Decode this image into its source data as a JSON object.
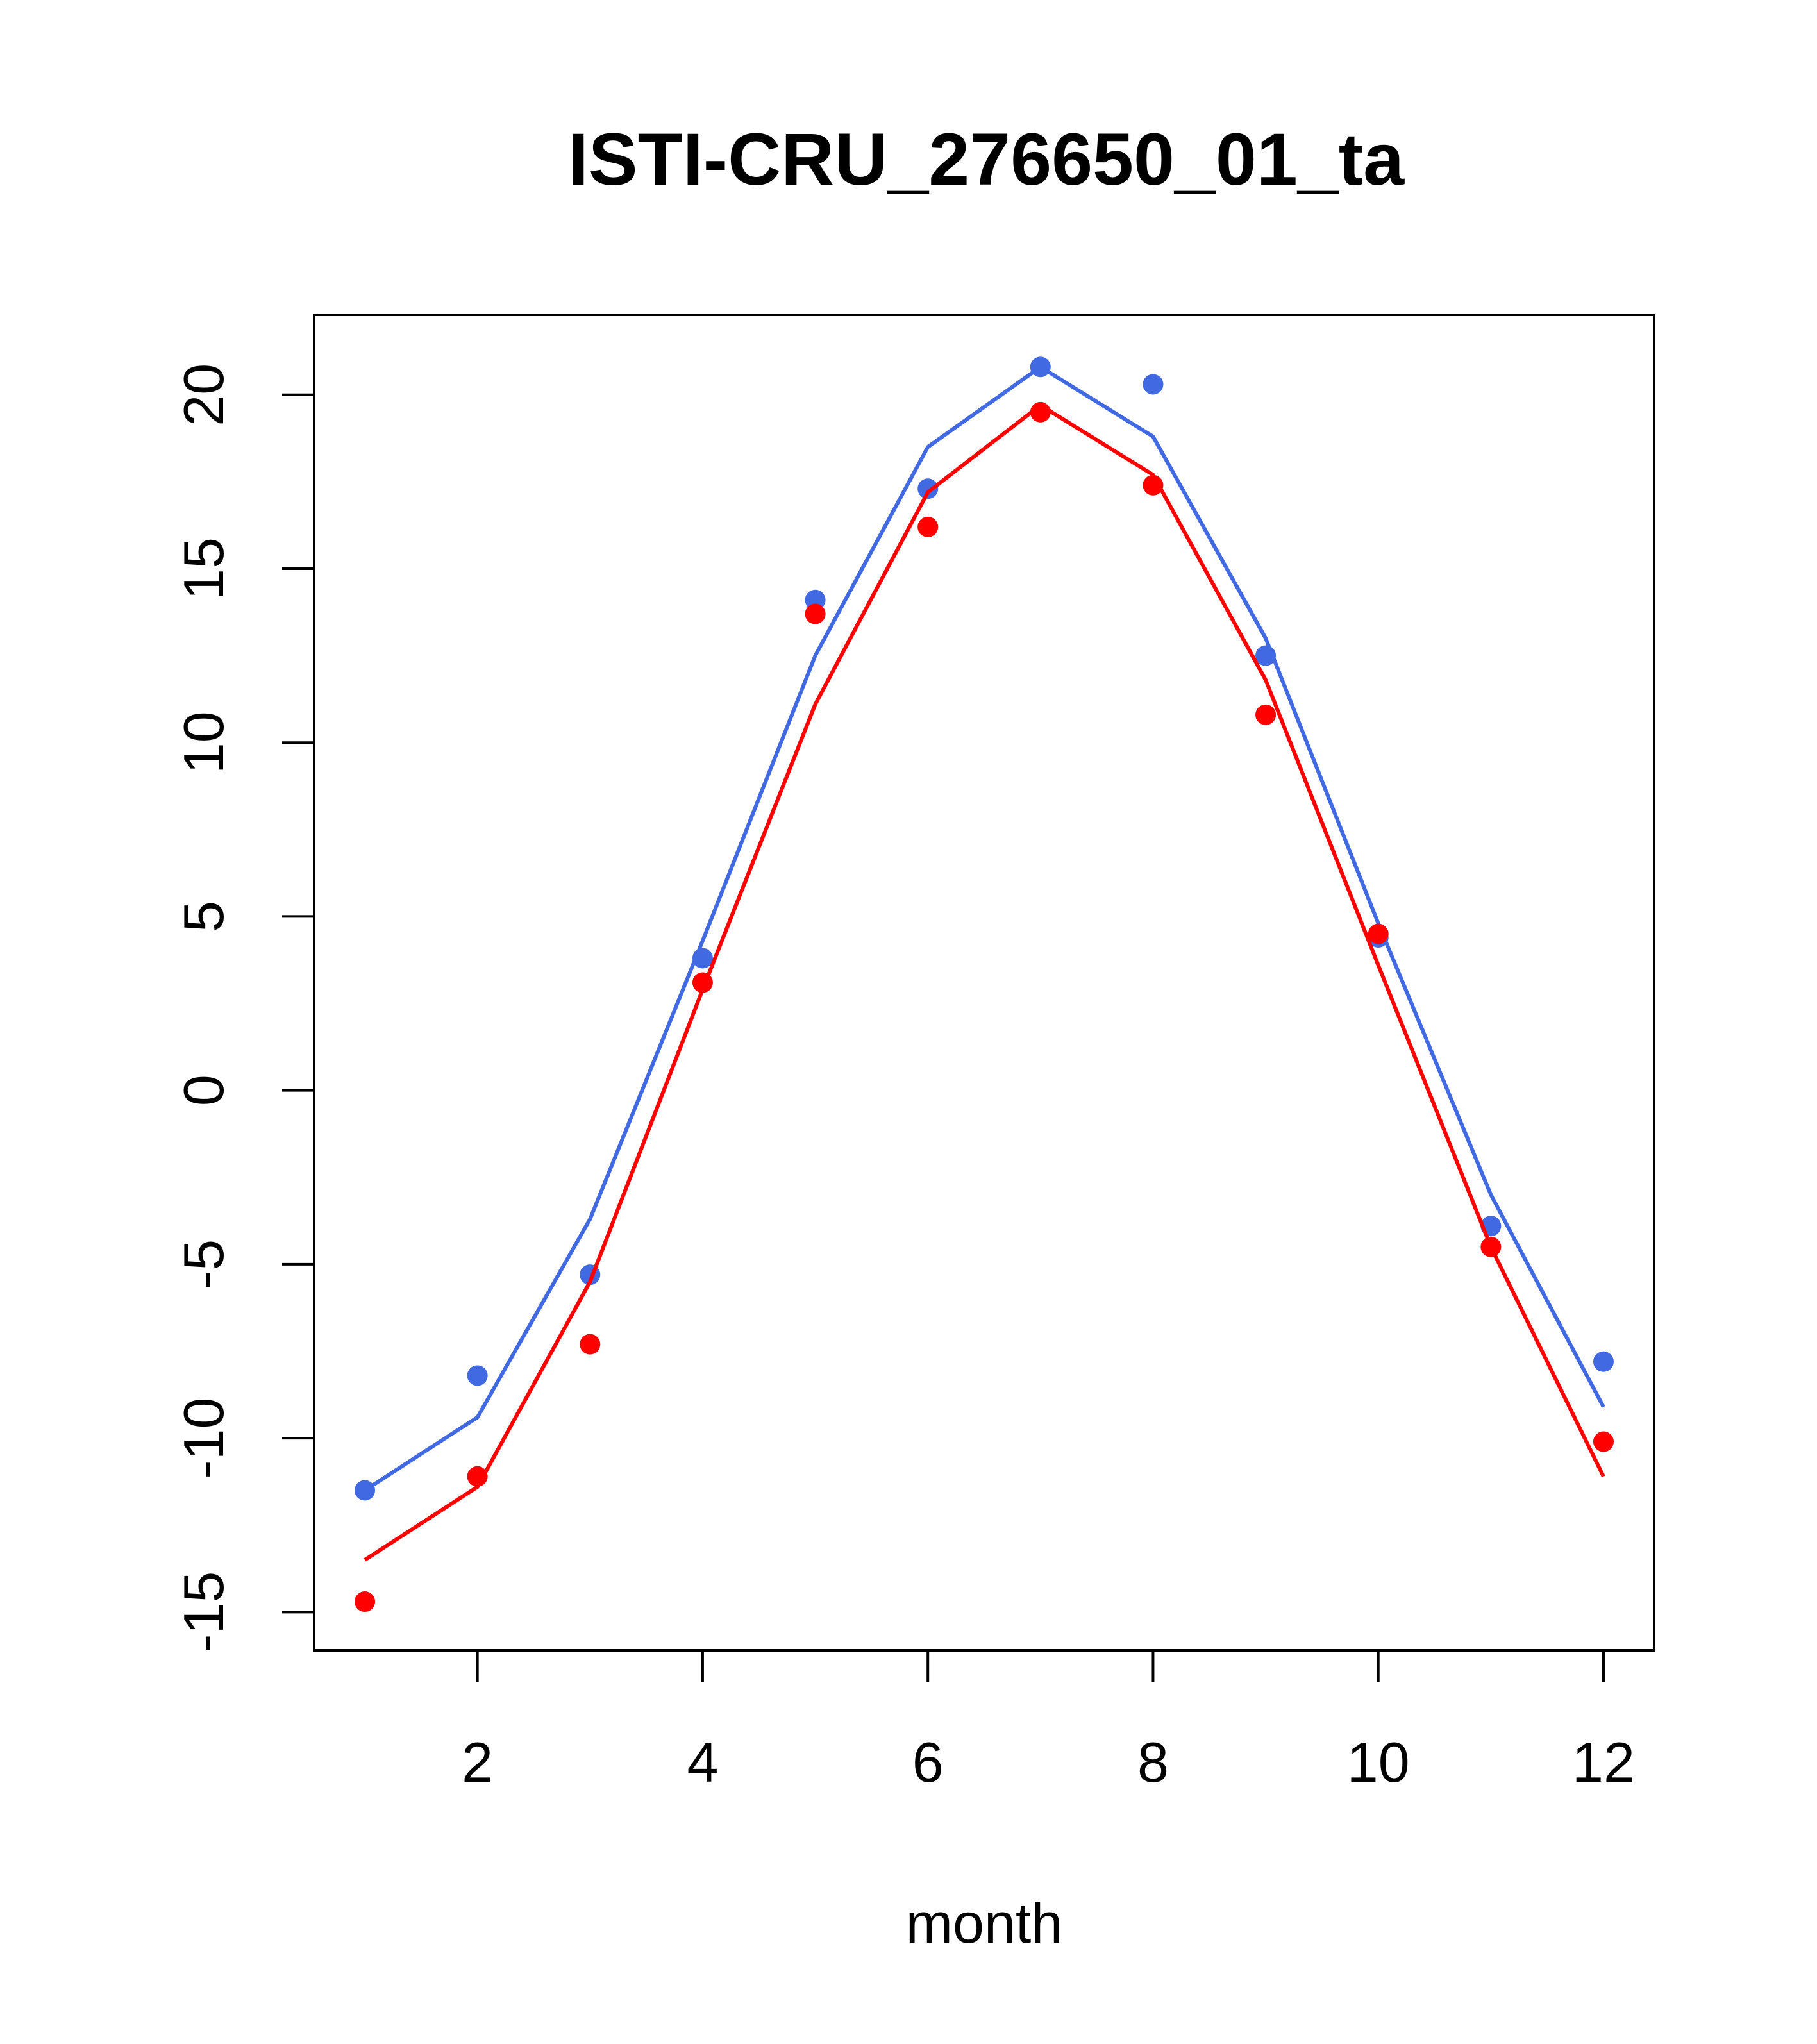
{
  "chart_data": {
    "type": "line",
    "title": "ISTI-CRU_276650_01_ta",
    "xlabel": "month",
    "ylabel": "",
    "xlim": [
      0.55,
      12.45
    ],
    "ylim": [
      -16.1,
      22.3
    ],
    "x_ticks": [
      2,
      4,
      6,
      8,
      10,
      12
    ],
    "y_ticks": [
      -15,
      -10,
      -5,
      0,
      5,
      10,
      15,
      20
    ],
    "grid": false,
    "legend": "none",
    "series": [
      {
        "color": "#4169E1",
        "x": [
          1,
          2,
          3,
          4,
          5,
          6,
          7,
          8,
          9,
          10,
          11,
          12
        ],
        "points": [
          -11.5,
          -8.2,
          -5.3,
          3.8,
          14.1,
          17.3,
          20.8,
          20.3,
          12.5,
          4.4,
          -3.9,
          -7.8
        ],
        "line": [
          -11.5,
          -9.4,
          -3.7,
          4.3,
          12.5,
          18.5,
          20.8,
          18.8,
          13.0,
          4.8,
          -3.0,
          -9.1
        ]
      },
      {
        "color": "#FF0000",
        "x": [
          1,
          2,
          3,
          4,
          5,
          6,
          7,
          8,
          9,
          10,
          11,
          12
        ],
        "points": [
          -14.7,
          -11.1,
          -7.3,
          3.1,
          13.7,
          16.2,
          19.5,
          17.4,
          10.8,
          4.5,
          -4.5,
          -10.1
        ],
        "line": [
          -13.5,
          -11.4,
          -5.5,
          2.9,
          11.1,
          17.2,
          19.7,
          17.7,
          11.8,
          3.6,
          -4.5,
          -11.1
        ]
      }
    ]
  }
}
